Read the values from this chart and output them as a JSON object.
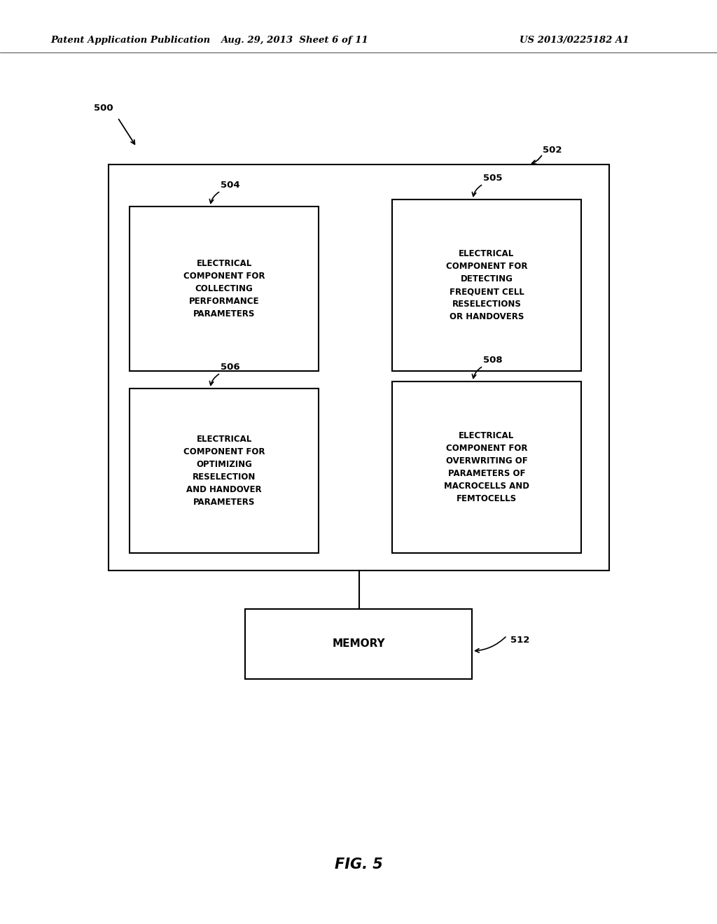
{
  "background_color": "#ffffff",
  "header_left": "Patent Application Publication",
  "header_mid": "Aug. 29, 2013  Sheet 6 of 11",
  "header_right": "US 2013/0225182 A1",
  "fig_label": "FIG. 5",
  "label_500": "500",
  "label_502": "502",
  "label_504": "504",
  "label_505": "505",
  "label_506": "506",
  "label_508": "508",
  "label_512": "512",
  "box_504_text": "ELECTRICAL\nCOMPONENT FOR\nCOLLECTING\nPERFORMANCE\nPARAMETERS",
  "box_505_text": "ELECTRICAL\nCOMPONENT FOR\nDETECTING\nFREQUENT CELL\nRESELECTIONS\nOR HANDOVERS",
  "box_506_text": "ELECTRICAL\nCOMPONENT FOR\nOPTIMIZING\nRESELECTION\nAND HANDOVER\nPARAMETERS",
  "box_508_text": "ELECTRICAL\nCOMPONENT FOR\nOVERWRITING OF\nPARAMETERS OF\nMACROCELLS AND\nFEMTOCELLS",
  "memory_text": "MEMORY",
  "text_color": "#000000",
  "font_size_header": 9.5,
  "font_size_label": 9.5,
  "font_size_box": 8.5,
  "font_size_memory": 11,
  "font_size_fig": 15
}
